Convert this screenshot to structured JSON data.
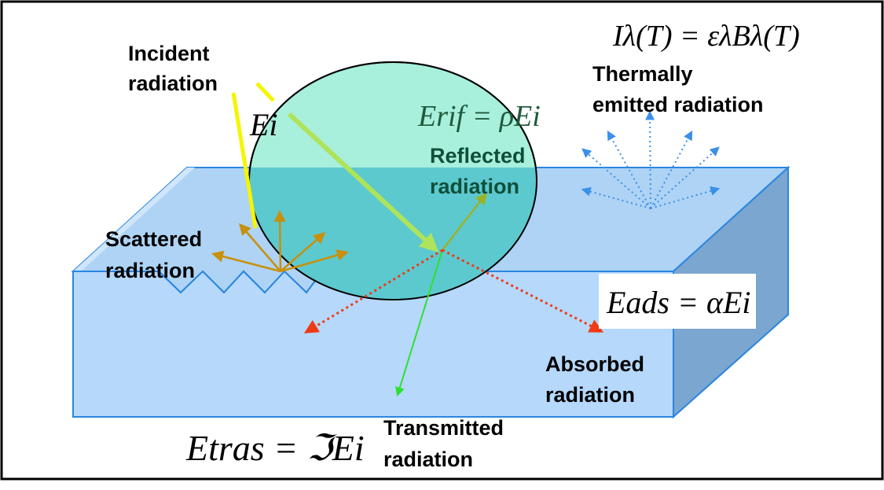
{
  "labels": {
    "incident": [
      "Incident",
      "radiation"
    ],
    "thermal": [
      "Thermally",
      "emitted radiation"
    ],
    "reflected": [
      "Reflected",
      "radiation"
    ],
    "scattered": [
      "Scattered",
      "radiation"
    ],
    "absorbed": [
      "Absorbed",
      "radiation"
    ],
    "transmitted": [
      "Transmitted",
      "radiation"
    ]
  },
  "equations": {
    "planck": "Iλ(T) = ελBλ(T)",
    "incident": "Ei",
    "reflected": "Erif = ρEi",
    "absorbed": "Eads = αEi",
    "transmitted": "Etras = ℑEi"
  },
  "colors": {
    "slab_top": "#aed3f5",
    "slab_front": "#b5d8fb",
    "slab_side": "#7aa6cf",
    "slab_edge": "#2a86e0",
    "circle_top": "#a8efdc",
    "circle_bottom": "#5cc9cf",
    "incident_ray": "#f5f500",
    "incident_beam": "#aee35a",
    "scatter": "#c8900c",
    "reflected_ray": "#9ab326",
    "transmitted_ray": "#2fe02f",
    "absorbed_ray": "#f03a14",
    "thermal_ray": "#3a90e8"
  }
}
